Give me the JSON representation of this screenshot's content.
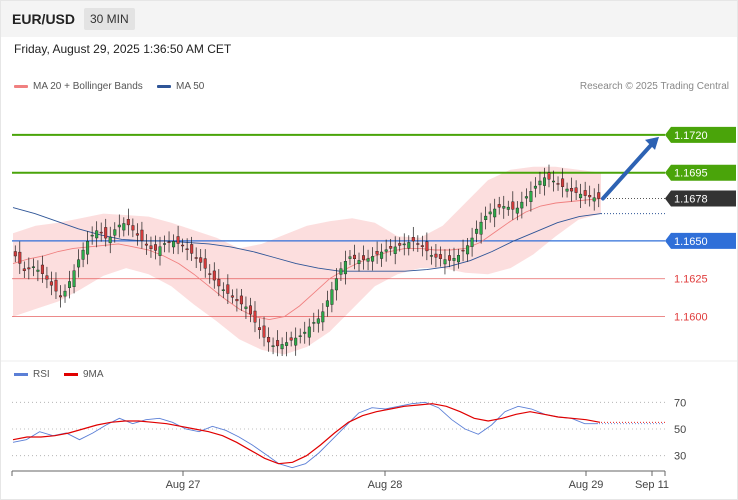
{
  "header": {
    "symbol": "EUR/USD",
    "timeframe": "30 MIN"
  },
  "datetime": "Friday, August 29, 2025 1:36:50 AM CET",
  "legend": {
    "ma20_label": "MA 20 + Bollinger Bands",
    "ma20_color": "#f08080",
    "ma50_label": "MA 50",
    "ma50_color": "#2f5597"
  },
  "research": "Research © 2025 Trading Central",
  "rsi_legend": {
    "rsi_label": "RSI",
    "rsi_color": "#5b7fd6",
    "ma9_label": "9MA",
    "ma9_color": "#e00000"
  },
  "chart_data": [
    {
      "type": "candlestick",
      "instrument": "EUR/USD",
      "ylim": [
        1.1572,
        1.1745
      ],
      "current_price": 1.1678,
      "levels": [
        {
          "value": 1.172,
          "label": "1.1720",
          "kind": "resistance",
          "color": "#4aa40a"
        },
        {
          "value": 1.1695,
          "label": "1.1695",
          "kind": "resistance",
          "color": "#4aa40a"
        },
        {
          "value": 1.1678,
          "label": "1.1678",
          "kind": "last",
          "color": "#333333"
        },
        {
          "value": 1.165,
          "label": "1.1650",
          "kind": "pivot",
          "color": "#2f6fd8"
        },
        {
          "value": 1.1625,
          "label": "1.1625",
          "kind": "support",
          "color": "#e03c3c"
        },
        {
          "value": 1.16,
          "label": "1.1600",
          "kind": "support",
          "color": "#e03c3c"
        }
      ],
      "arrow": {
        "from": 1.1678,
        "to": 1.172,
        "color": "#2d62b3"
      },
      "price_path": [
        1.164,
        1.163,
        1.1633,
        1.1628,
        1.162,
        1.1612,
        1.1625,
        1.164,
        1.1652,
        1.1658,
        1.165,
        1.166,
        1.1662,
        1.1655,
        1.1648,
        1.1643,
        1.1648,
        1.165,
        1.1647,
        1.1642,
        1.1636,
        1.1628,
        1.162,
        1.1615,
        1.161,
        1.1606,
        1.1595,
        1.1585,
        1.158,
        1.1582,
        1.1585,
        1.1588,
        1.1595,
        1.16,
        1.1615,
        1.163,
        1.164,
        1.1637,
        1.1638,
        1.1641,
        1.1644,
        1.1646,
        1.1648,
        1.165,
        1.1646,
        1.164,
        1.1638,
        1.1637,
        1.1641,
        1.1648,
        1.166,
        1.1668,
        1.1672,
        1.1673,
        1.167,
        1.1678,
        1.1685,
        1.1692,
        1.169,
        1.1686,
        1.1683,
        1.1681,
        1.1679,
        1.1678
      ],
      "ma20": [
        1.1635,
        1.1638,
        1.164,
        1.1643,
        1.1645,
        1.1646,
        1.1647,
        1.1648,
        1.1646,
        1.1644,
        1.164,
        1.1635,
        1.1628,
        1.162,
        1.1612,
        1.1605,
        1.16,
        1.1598,
        1.16,
        1.1607,
        1.1616,
        1.1625,
        1.1631,
        1.1636,
        1.164,
        1.1643,
        1.1645,
        1.1645,
        1.1644,
        1.1644,
        1.1645,
        1.1649,
        1.1656,
        1.1663,
        1.1669,
        1.1673,
        1.1675,
        1.1676,
        1.1677,
        1.1678
      ],
      "ma50": [
        1.1672,
        1.1668,
        1.1663,
        1.1658,
        1.1654,
        1.1651,
        1.165,
        1.165,
        1.1649,
        1.1648,
        1.1646,
        1.1643,
        1.1639,
        1.1635,
        1.1632,
        1.163,
        1.163,
        1.163,
        1.163,
        1.1631,
        1.1633,
        1.1637,
        1.1643,
        1.165,
        1.1656,
        1.1662,
        1.1666,
        1.1668
      ],
      "bb_upper": [
        1.1655,
        1.166,
        1.1662,
        1.1665,
        1.1668,
        1.1667,
        1.1666,
        1.1662,
        1.1657,
        1.1652,
        1.1645,
        1.1648,
        1.1654,
        1.166,
        1.1663,
        1.1665,
        1.1662,
        1.1653,
        1.1652,
        1.166,
        1.1675,
        1.169,
        1.1697,
        1.1699,
        1.1699,
        1.1697,
        1.1695
      ],
      "bb_lower": [
        1.16,
        1.1605,
        1.161,
        1.1618,
        1.1627,
        1.1632,
        1.1628,
        1.162,
        1.1608,
        1.1597,
        1.1585,
        1.1578,
        1.1575,
        1.158,
        1.159,
        1.1605,
        1.162,
        1.1628,
        1.1632,
        1.1632,
        1.1629,
        1.1628,
        1.1632,
        1.1641,
        1.1653,
        1.1664,
        1.1668
      ]
    },
    {
      "type": "line",
      "indicator": "RSI",
      "ylim": [
        20,
        80
      ],
      "y_ticks": [
        70,
        50,
        30
      ],
      "x_ticks": [
        "Aug 27",
        "Aug 28",
        "Aug 29",
        "Sep 11"
      ],
      "series": [
        {
          "name": "RSI",
          "color": "#5b7fd6",
          "values": [
            40,
            42,
            48,
            45,
            47,
            42,
            47,
            53,
            58,
            54,
            57,
            58,
            55,
            50,
            48,
            52,
            49,
            44,
            38,
            31,
            24,
            21,
            24,
            32,
            42,
            52,
            62,
            66,
            65,
            67,
            69,
            70,
            66,
            57,
            50,
            46,
            53,
            63,
            67,
            65,
            61,
            59,
            58,
            54,
            54
          ]
        },
        {
          "name": "9MA",
          "color": "#e00000",
          "values": [
            42,
            44,
            44,
            45,
            47,
            50,
            53,
            55,
            56,
            56,
            55,
            54,
            52,
            50,
            48,
            45,
            40,
            34,
            28,
            24,
            25,
            30,
            38,
            47,
            55,
            60,
            63,
            65,
            67,
            68,
            69,
            67,
            63,
            58,
            56,
            58,
            61,
            63,
            61,
            59,
            58,
            57,
            55
          ]
        }
      ]
    }
  ]
}
